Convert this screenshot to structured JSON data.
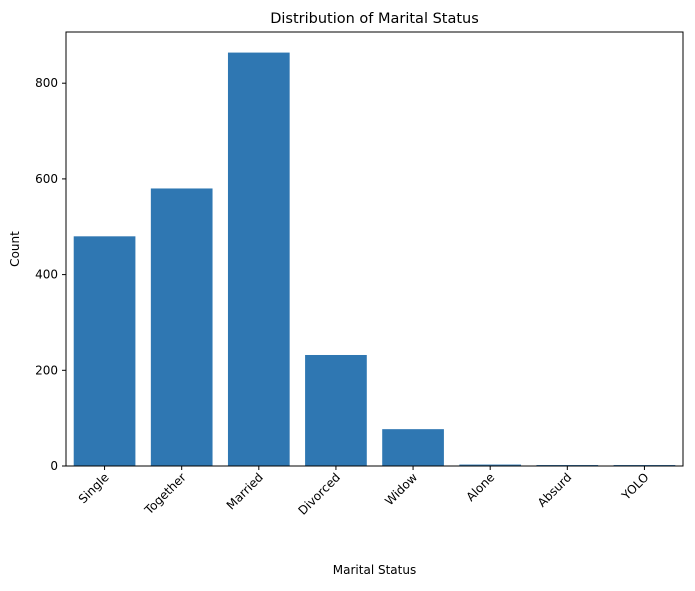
{
  "chart_data": {
    "type": "bar",
    "title": "Distribution of Marital Status",
    "xlabel": "Marital Status",
    "ylabel": "Count",
    "categories": [
      "Single",
      "Together",
      "Married",
      "Divorced",
      "Widow",
      "Alone",
      "Absurd",
      "YOLO"
    ],
    "values": [
      480,
      580,
      864,
      232,
      77,
      3,
      2,
      2
    ],
    "ylim": [
      0,
      907
    ],
    "yticks": [
      0,
      200,
      400,
      600,
      800
    ],
    "grid": false,
    "legend": "none",
    "bar_color": "#2f77b2"
  }
}
